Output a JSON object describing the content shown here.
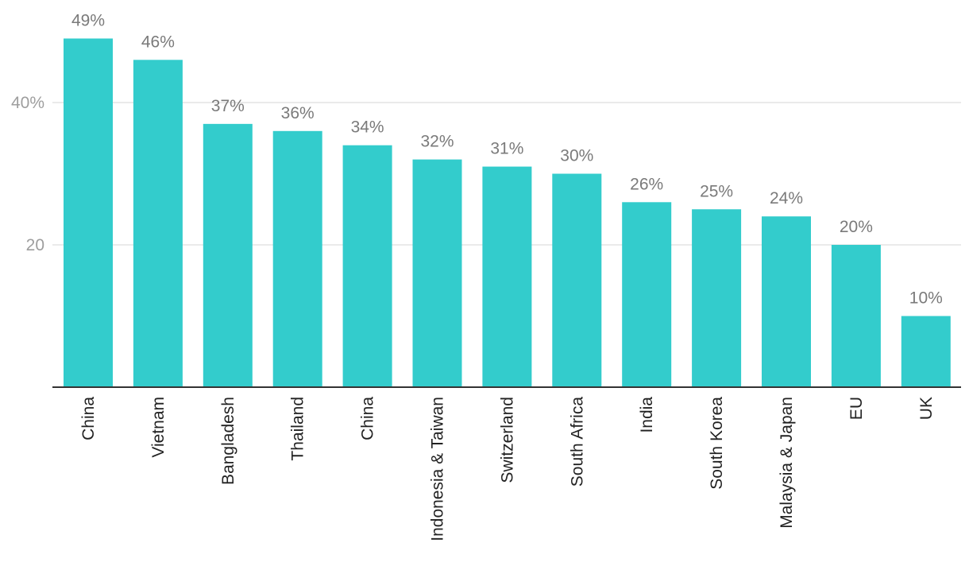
{
  "chart_data": {
    "type": "bar",
    "title": "",
    "xlabel": "",
    "ylabel": "",
    "categories": [
      "China",
      "Vietnam",
      "Bangladesh",
      "Thailand",
      "China",
      "Indonesia & Taiwan",
      "Switzerland",
      "South Africa",
      "India",
      "South Korea",
      "Malaysia & Japan",
      "EU",
      "UK"
    ],
    "values": [
      49,
      46,
      37,
      36,
      34,
      32,
      31,
      30,
      26,
      25,
      24,
      20,
      10
    ],
    "data_labels": [
      "49%",
      "46%",
      "37%",
      "36%",
      "34%",
      "32%",
      "31%",
      "30%",
      "26%",
      "25%",
      "24%",
      "20%",
      "10%"
    ],
    "ylim": [
      0,
      50
    ],
    "yticks": [
      {
        "value": 20,
        "label": "20"
      },
      {
        "value": 40,
        "label": "40%"
      }
    ],
    "grid": true,
    "colors": {
      "bar": "#33cccc"
    }
  }
}
